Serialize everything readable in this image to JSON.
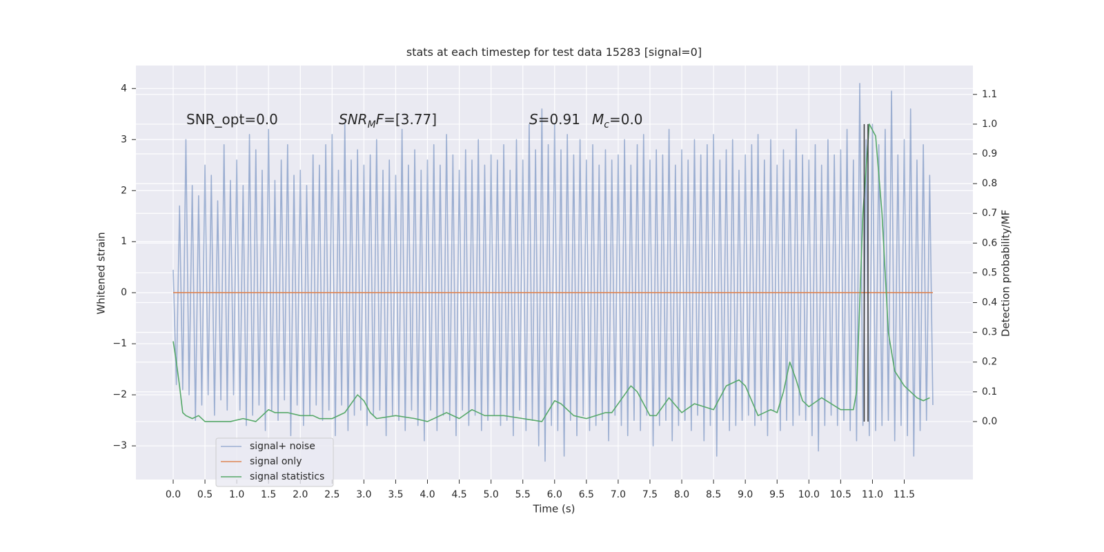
{
  "chart_data": {
    "type": "line",
    "title": "stats at each timestep for test data 15283 [signal=0]",
    "xlabel": "Time (s)",
    "ylabel": "Whitened strain",
    "y2label": "Detection probability/MF",
    "xlim": [
      -0.586,
      12.58
    ],
    "ylim": [
      -3.66,
      4.45
    ],
    "y2lim": [
      -0.195,
      1.197
    ],
    "xticks": [
      {
        "value": 0,
        "label": "0.0"
      },
      0.5,
      {
        "value": 1,
        "label": "1.0"
      },
      1.5,
      {
        "value": 2,
        "label": "2.0"
      },
      2.5,
      {
        "value": 3,
        "label": "3.0"
      },
      3.5,
      {
        "value": 4,
        "label": "4.0"
      },
      4.5,
      {
        "value": 5,
        "label": "5.0"
      },
      5.5,
      {
        "value": 6,
        "label": "6.0"
      },
      6.5,
      {
        "value": 7,
        "label": "7.0"
      },
      7.5,
      {
        "value": 8,
        "label": "8.0"
      },
      8.5,
      {
        "value": 9,
        "label": "9.0"
      },
      9.5,
      {
        "value": 10,
        "label": "10.0"
      },
      10.5,
      {
        "value": 11,
        "label": "11.0"
      },
      11.5
    ],
    "yticks": [
      {
        "value": -3,
        "label": "−3"
      },
      {
        "value": -2,
        "label": "−2"
      },
      {
        "value": -1,
        "label": "−1"
      },
      0,
      1,
      2,
      3,
      4
    ],
    "y2ticks": [
      {
        "value": 0,
        "label": "0.0"
      },
      0.1,
      0.2,
      0.3,
      0.4,
      0.5,
      0.6,
      0.7,
      0.8,
      0.9,
      {
        "value": 1,
        "label": "1.0"
      },
      1.1
    ],
    "grid": true,
    "legend": "lower left",
    "series": [
      {
        "name": "signal+ noise",
        "color": "#4c72b0",
        "alpha": 0.5,
        "x": [
          0,
          0.05,
          0.1,
          0.15,
          0.2,
          0.25,
          0.3,
          0.35,
          0.4,
          0.45,
          0.5,
          0.55,
          0.6,
          0.65,
          0.7,
          0.75,
          0.8,
          0.85,
          0.9,
          0.95,
          1,
          1.05,
          1.1,
          1.15,
          1.2,
          1.25,
          1.3,
          1.35,
          1.4,
          1.45,
          1.5,
          1.55,
          1.6,
          1.65,
          1.7,
          1.75,
          1.8,
          1.85,
          1.9,
          1.95,
          2,
          2.05,
          2.1,
          2.15,
          2.2,
          2.25,
          2.3,
          2.35,
          2.4,
          2.45,
          2.5,
          2.55,
          2.6,
          2.65,
          2.7,
          2.75,
          2.8,
          2.85,
          2.9,
          2.95,
          3,
          3.05,
          3.1,
          3.15,
          3.2,
          3.25,
          3.3,
          3.35,
          3.4,
          3.45,
          3.5,
          3.55,
          3.6,
          3.65,
          3.7,
          3.75,
          3.8,
          3.85,
          3.9,
          3.95,
          4,
          4.05,
          4.1,
          4.15,
          4.2,
          4.25,
          4.3,
          4.35,
          4.4,
          4.45,
          4.5,
          4.55,
          4.6,
          4.65,
          4.7,
          4.75,
          4.8,
          4.85,
          4.9,
          4.95,
          5,
          5.05,
          5.1,
          5.15,
          5.2,
          5.25,
          5.3,
          5.35,
          5.4,
          5.45,
          5.5,
          5.55,
          5.6,
          5.65,
          5.7,
          5.75,
          5.8,
          5.85,
          5.9,
          5.95,
          6,
          6.05,
          6.1,
          6.15,
          6.2,
          6.25,
          6.3,
          6.35,
          6.4,
          6.45,
          6.5,
          6.55,
          6.6,
          6.65,
          6.7,
          6.75,
          6.8,
          6.85,
          6.9,
          6.95,
          7,
          7.05,
          7.1,
          7.15,
          7.2,
          7.25,
          7.3,
          7.35,
          7.4,
          7.45,
          7.5,
          7.55,
          7.6,
          7.65,
          7.7,
          7.75,
          7.8,
          7.85,
          7.9,
          7.95,
          8,
          8.05,
          8.1,
          8.15,
          8.2,
          8.25,
          8.3,
          8.35,
          8.4,
          8.45,
          8.5,
          8.55,
          8.6,
          8.65,
          8.7,
          8.75,
          8.8,
          8.85,
          8.9,
          8.95,
          9,
          9.05,
          9.1,
          9.15,
          9.2,
          9.25,
          9.3,
          9.35,
          9.4,
          9.45,
          9.5,
          9.55,
          9.6,
          9.65,
          9.7,
          9.75,
          9.8,
          9.85,
          9.9,
          9.95,
          10,
          10.05,
          10.1,
          10.15,
          10.2,
          10.25,
          10.3,
          10.35,
          10.4,
          10.45,
          10.5,
          10.55,
          10.6,
          10.65,
          10.7,
          10.75,
          10.8,
          10.85,
          10.9,
          10.95,
          11,
          11.05,
          11.1,
          11.15,
          11.2,
          11.25,
          11.3,
          11.35,
          11.4,
          11.45,
          11.5,
          11.55,
          11.6,
          11.65,
          11.7,
          11.75,
          11.8,
          11.85,
          11.9,
          11.95
        ],
        "values": [
          0.45,
          -1.8,
          1.7,
          -1.9,
          3.0,
          -2.0,
          2.1,
          -2.5,
          1.9,
          -2.2,
          2.5,
          -2.0,
          2.3,
          -2.4,
          1.8,
          -2.1,
          2.9,
          -2.3,
          2.2,
          -2.0,
          2.6,
          -2.3,
          2.1,
          -2.6,
          3.1,
          -2.4,
          2.8,
          -2.2,
          2.4,
          -2.7,
          3.2,
          -2.3,
          2.2,
          -2.5,
          2.6,
          -2.1,
          2.9,
          -2.8,
          2.3,
          -2.2,
          2.4,
          -2.6,
          2.1,
          -2.4,
          2.7,
          -2.2,
          2.5,
          -2.5,
          2.9,
          -2.3,
          3.1,
          -2.8,
          2.4,
          -2.2,
          3.3,
          -2.7,
          2.6,
          -2.4,
          2.8,
          -2.3,
          2.5,
          -2.6,
          2.7,
          -2.4,
          3.0,
          -2.3,
          2.4,
          -2.8,
          2.6,
          -2.4,
          2.3,
          -2.5,
          3.2,
          -2.7,
          2.5,
          -2.3,
          2.8,
          -2.6,
          2.4,
          -2.9,
          2.6,
          -2.3,
          2.9,
          -2.7,
          2.5,
          -2.4,
          3.1,
          -2.5,
          2.7,
          -2.8,
          2.4,
          -2.3,
          2.8,
          -2.6,
          2.6,
          -2.4,
          3.0,
          -2.7,
          2.5,
          -2.5,
          2.7,
          -2.4,
          2.6,
          -2.6,
          2.9,
          -2.5,
          2.4,
          -2.8,
          3.0,
          -2.3,
          2.6,
          -2.7,
          3.3,
          -2.5,
          2.8,
          -3.0,
          3.6,
          -3.3,
          2.9,
          -2.6,
          3.3,
          -2.7,
          2.8,
          -3.2,
          3.1,
          -2.5,
          2.7,
          -2.8,
          3.0,
          -2.4,
          2.6,
          -2.7,
          2.9,
          -2.6,
          2.5,
          -2.5,
          2.8,
          -2.9,
          2.6,
          -2.4,
          2.7,
          -2.6,
          3.0,
          -2.8,
          2.5,
          -2.5,
          2.9,
          -2.7,
          3.1,
          -2.4,
          2.6,
          -3.0,
          2.8,
          -2.6,
          2.7,
          -2.5,
          3.2,
          -2.9,
          2.5,
          -2.6,
          2.8,
          -2.5,
          2.6,
          -2.7,
          3.0,
          -2.4,
          2.7,
          -2.9,
          2.9,
          -2.6,
          3.1,
          -3.2,
          2.6,
          -2.5,
          2.8,
          -2.7,
          3.0,
          -2.6,
          2.4,
          -2.5,
          2.7,
          -2.4,
          2.9,
          -2.6,
          3.1,
          -2.5,
          2.6,
          -2.8,
          3.0,
          -2.3,
          2.5,
          -2.7,
          2.8,
          -2.5,
          2.6,
          -2.6,
          3.2,
          -2.4,
          2.7,
          -2.5,
          2.6,
          -2.8,
          2.9,
          -3.1,
          2.5,
          -2.6,
          3.0,
          -2.4,
          2.7,
          -2.6,
          2.8,
          -2.5,
          3.2,
          -2.7,
          2.6,
          -2.9,
          4.1,
          -2.6,
          3.0,
          -2.8,
          3.3,
          -2.7,
          2.9,
          -2.6,
          3.2,
          -2.5,
          3.95,
          -2.9,
          2.7,
          -2.6,
          3.0,
          -2.8,
          3.6,
          -3.2,
          2.6,
          -2.7,
          2.9,
          -2.5,
          2.3,
          -2.2
        ]
      },
      {
        "name": "signal only",
        "color": "#dd8452",
        "x": [
          0,
          11.95
        ],
        "values": [
          0,
          0
        ]
      },
      {
        "name": "signal statistics",
        "color": "#55a868",
        "axis": "y2",
        "x": [
          0,
          0.05,
          0.1,
          0.15,
          0.2,
          0.3,
          0.4,
          0.5,
          0.7,
          0.9,
          1.1,
          1.3,
          1.5,
          1.6,
          1.8,
          2.0,
          2.2,
          2.3,
          2.5,
          2.7,
          2.9,
          3.0,
          3.1,
          3.2,
          3.5,
          3.8,
          4.0,
          4.3,
          4.5,
          4.7,
          4.9,
          5.2,
          5.5,
          5.8,
          6.0,
          6.1,
          6.3,
          6.5,
          6.8,
          6.9,
          7.1,
          7.2,
          7.3,
          7.5,
          7.6,
          7.8,
          8.0,
          8.2,
          8.5,
          8.7,
          8.9,
          9.0,
          9.2,
          9.4,
          9.5,
          9.6,
          9.7,
          9.8,
          9.9,
          10.0,
          10.2,
          10.5,
          10.7,
          10.75,
          10.85,
          10.95,
          11.05,
          11.15,
          11.25,
          11.35,
          11.5,
          11.7,
          11.8,
          11.9
        ],
        "values": [
          0.27,
          0.2,
          0.12,
          0.03,
          0.02,
          0.01,
          0.02,
          0.0,
          0.0,
          0.0,
          0.01,
          0.0,
          0.04,
          0.03,
          0.03,
          0.02,
          0.02,
          0.01,
          0.01,
          0.03,
          0.09,
          0.07,
          0.03,
          0.01,
          0.02,
          0.01,
          0.0,
          0.03,
          0.01,
          0.04,
          0.02,
          0.02,
          0.01,
          0.0,
          0.07,
          0.06,
          0.02,
          0.01,
          0.03,
          0.03,
          0.09,
          0.12,
          0.1,
          0.02,
          0.02,
          0.08,
          0.03,
          0.06,
          0.04,
          0.12,
          0.14,
          0.12,
          0.02,
          0.04,
          0.03,
          0.1,
          0.2,
          0.14,
          0.07,
          0.05,
          0.08,
          0.04,
          0.04,
          0.1,
          0.7,
          1.0,
          0.96,
          0.7,
          0.3,
          0.17,
          0.12,
          0.08,
          0.07,
          0.08
        ]
      }
    ],
    "vlines": {
      "x": [
        10.87,
        10.93
      ],
      "ymin": 0,
      "ymax": 1,
      "axis": "y2",
      "color": "#333333"
    },
    "annotations": [
      [
        {
          "t": "SNR_opt=0.0"
        }
      ],
      [
        {
          "t": "SNR",
          "italic": true
        },
        {
          "t": "M",
          "italic": true,
          "sub": true
        },
        {
          "t": "F",
          "italic": true
        },
        {
          "t": "=[3.77]"
        }
      ],
      [
        {
          "t": "S",
          "italic": true
        },
        {
          "t": "=0.91"
        }
      ],
      [
        {
          "t": "M",
          "italic": true
        },
        {
          "t": "c",
          "italic": true,
          "sub": true
        },
        {
          "t": "=0.0"
        }
      ]
    ]
  }
}
